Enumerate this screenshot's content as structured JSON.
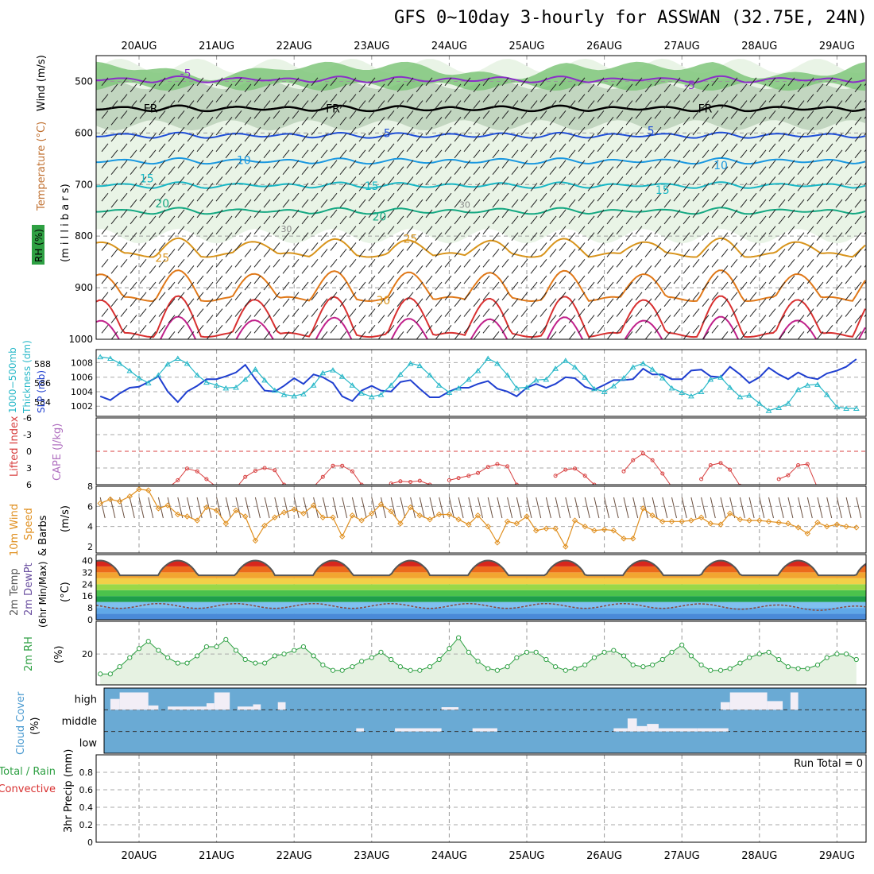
{
  "title": "GFS 0~10day 3-hourly for ASSWAN (32.75E, 24N)",
  "dates": [
    "20AUG",
    "21AUG",
    "22AUG",
    "23AUG",
    "24AUG",
    "25AUG",
    "26AUG",
    "27AUG",
    "28AUG",
    "29AUG"
  ],
  "run_total": "Run Total = 0",
  "colors": {
    "rh_green": "#2ea043",
    "dewpt": "#6a4fa0",
    "temp_red": "#d81818",
    "cloud": "#6aaad4",
    "thickness": "#1f3fd0",
    "slp": "#28b8c8",
    "wind10": "#e09020",
    "lifted": "#d84040"
  },
  "labels": {
    "p1": {
      "wind": "Wind (m/s)",
      "temperature": "Temperature (°C)",
      "rh": "RH (%)",
      "mb": "(m i l l i b a r s)"
    },
    "p2": {
      "thick1": "1000−500mb",
      "thick2": "Thickness (dm)",
      "slp": "SLP (mb)"
    },
    "p3": {
      "li": "Lifted Index",
      "cape": "CAPE (J/kg)"
    },
    "p4": {
      "wind10": "10m Wind",
      "speed": "Speed",
      "barbs": "& Barbs",
      "unit": "(m/s)"
    },
    "p5": {
      "temp": "2m Temp",
      "dewpt": "2m DewPt",
      "minmax": "(6hr Min/Max)",
      "unit": "(°C)"
    },
    "p6": {
      "rh": "2m RH",
      "unit": "(%)"
    },
    "p7": {
      "cloud": "Cloud Cover",
      "unit": "(%)",
      "high": "high",
      "middle": "middle",
      "low": "low"
    },
    "p8": {
      "total": "Total / Rain",
      "convective": "Convective",
      "precip": "3hr Precip (mm)"
    }
  },
  "chart_data": [
    {
      "type": "contour",
      "name": "upper-air cross-section",
      "ylabel": "millibars",
      "ylim": [
        1000,
        450
      ],
      "yticks": [
        "500",
        "600",
        "700",
        "800",
        "900",
        "1000"
      ],
      "temperature_isotherm_labels": [
        {
          "label": "-5",
          "p": 492,
          "t": 0.6
        },
        {
          "label": "-5",
          "p": 515,
          "t": 7.1
        },
        {
          "label": "FR",
          "p": 560,
          "t": 0.15
        },
        {
          "label": "FR",
          "p": 560,
          "t": 2.5
        },
        {
          "label": "FR",
          "p": 560,
          "t": 7.3
        },
        {
          "label": "5",
          "p": 608,
          "t": 3.2
        },
        {
          "label": "5",
          "p": 603,
          "t": 6.6
        },
        {
          "label": "10",
          "p": 660,
          "t": 1.35
        },
        {
          "label": "10",
          "p": 670,
          "t": 7.5
        },
        {
          "label": "15",
          "p": 696,
          "t": 0.1
        },
        {
          "label": "15",
          "p": 710,
          "t": 3.0
        },
        {
          "label": "15",
          "p": 718,
          "t": 6.75
        },
        {
          "label": "20",
          "p": 744,
          "t": 0.3
        },
        {
          "label": "20",
          "p": 770,
          "t": 3.1
        },
        {
          "label": "25",
          "p": 850,
          "t": 0.3
        },
        {
          "label": "25",
          "p": 813,
          "t": 3.5
        },
        {
          "label": "30",
          "p": 932,
          "t": 3.15
        }
      ],
      "rh_labels": [
        {
          "label": "30",
          "p": 792,
          "t": 1.9
        },
        {
          "label": "30",
          "p": 745,
          "t": 4.2
        }
      ]
    },
    {
      "type": "line",
      "name": "thickness and SLP",
      "x_days": [
        -0.5,
        -0.37,
        -0.25,
        -0.12,
        0,
        0.12,
        0.25,
        0.37,
        0.5,
        0.62,
        0.75,
        0.87,
        1,
        1.12,
        1.25,
        1.37,
        1.5,
        1.62,
        1.75,
        1.87,
        2,
        2.12,
        2.25,
        2.37,
        2.5,
        2.62,
        2.75,
        2.87,
        3,
        3.12,
        3.25,
        3.37,
        3.5,
        3.62,
        3.75,
        3.87,
        4,
        4.12,
        4.25,
        4.37,
        4.5,
        4.62,
        4.75,
        4.87,
        5,
        5.12,
        5.25,
        5.37,
        5.5,
        5.62,
        5.75,
        5.87,
        6,
        6.12,
        6.25,
        6.37,
        6.5,
        6.62,
        6.75,
        6.87,
        7,
        7.12,
        7.25,
        7.37,
        7.5,
        7.62,
        7.75,
        7.87,
        8,
        8.12,
        8.25,
        8.37,
        8.5,
        8.62,
        8.75,
        8.87,
        9,
        9.12,
        9.25
      ],
      "series": [
        {
          "name": "1000-500mb Thickness (dm)",
          "axis": "left",
          "ylim": [
            582.5,
            589.5
          ],
          "yticks": [
            584,
            586,
            588
          ],
          "values": [
            584.6,
            584.2,
            584.9,
            585.5,
            585.6,
            586.1,
            586.7,
            585.1,
            584.0,
            585.1,
            585.7,
            586.4,
            586.4,
            586.7,
            587.1,
            587.9,
            586.4,
            585.2,
            585.1,
            585.7,
            586.5,
            585.9,
            586.9,
            586.6,
            586.0,
            584.6,
            584.1,
            585.2,
            585.7,
            585.2,
            585.1,
            586.1,
            586.3,
            585.4,
            584.5,
            584.5,
            585.1,
            585.5,
            585.5,
            585.9,
            586.2,
            585.4,
            585.1,
            584.6,
            585.5,
            585.9,
            585.5,
            585.9,
            586.6,
            586.5,
            585.6,
            585.3,
            585.8,
            586.3,
            586.3,
            586.4,
            587.5,
            586.9,
            586.9,
            586.4,
            586.4,
            587.3,
            587.4,
            586.7,
            586.6,
            587.7,
            586.9,
            586.0,
            586.6,
            587.6,
            586.9,
            586.4,
            587.1,
            586.6,
            586.4,
            587.0,
            587.3,
            587.7,
            588.5
          ]
        },
        {
          "name": "SLP (mb)",
          "axis": "right",
          "ylim": [
            1000.6,
            1009.8
          ],
          "yticks": [
            1002,
            1004,
            1006,
            1008
          ],
          "values": [
            1008.8,
            1008.6,
            1007.9,
            1006.9,
            1005.9,
            1005.2,
            1006.3,
            1007.8,
            1008.6,
            1007.9,
            1006.3,
            1005.3,
            1004.9,
            1004.5,
            1004.6,
            1005.7,
            1007.1,
            1005.6,
            1004.2,
            1003.6,
            1003.4,
            1003.7,
            1004.9,
            1006.6,
            1007.0,
            1006.1,
            1004.9,
            1003.8,
            1003.3,
            1003.6,
            1004.9,
            1006.4,
            1007.9,
            1007.6,
            1006.3,
            1004.9,
            1003.9,
            1004.5,
            1005.7,
            1006.9,
            1008.6,
            1007.9,
            1006.3,
            1004.5,
            1004.6,
            1005.6,
            1005.7,
            1007.2,
            1008.3,
            1007.4,
            1006.0,
            1004.4,
            1004.0,
            1004.8,
            1005.9,
            1007.4,
            1007.9,
            1007.1,
            1005.9,
            1004.5,
            1003.9,
            1003.4,
            1004.0,
            1005.7,
            1006.0,
            1004.6,
            1003.3,
            1003.5,
            1002.4,
            1001.4,
            1001.8,
            1002.4,
            1004.3,
            1004.9,
            1005.0,
            1003.6,
            1001.9,
            1001.7,
            1001.7
          ]
        }
      ]
    },
    {
      "type": "line",
      "name": "Lifted Index / CAPE",
      "ylim": [
        6,
        -6
      ],
      "yticks": [
        "-6",
        "-3",
        "0",
        "3",
        "6"
      ],
      "zero_line": 0,
      "lifted_index": [
        {
          "x": 0.25,
          "y": 7.8
        },
        {
          "x": 0.37,
          "y": 6.6
        },
        {
          "x": 0.5,
          "y": 5.2
        },
        {
          "x": 0.62,
          "y": 3.1
        },
        {
          "x": 0.75,
          "y": 3.6
        },
        {
          "x": 0.87,
          "y": 5.0
        },
        {
          "x": 1.0,
          "y": 6.4
        },
        {
          "x": 1.25,
          "y": 6.6
        },
        {
          "x": 1.37,
          "y": 4.6
        },
        {
          "x": 1.5,
          "y": 3.5
        },
        {
          "x": 1.62,
          "y": 3.0
        },
        {
          "x": 1.75,
          "y": 3.4
        },
        {
          "x": 1.87,
          "y": 6.0
        },
        {
          "x": 2.25,
          "y": 6.4
        },
        {
          "x": 2.37,
          "y": 4.6
        },
        {
          "x": 2.5,
          "y": 2.6
        },
        {
          "x": 2.62,
          "y": 2.6
        },
        {
          "x": 2.75,
          "y": 3.6
        },
        {
          "x": 2.87,
          "y": 6.0
        },
        {
          "x": 3.25,
          "y": 5.8
        },
        {
          "x": 3.37,
          "y": 5.4
        },
        {
          "x": 3.5,
          "y": 5.5
        },
        {
          "x": 3.62,
          "y": 5.3
        },
        {
          "x": 3.75,
          "y": 6.0
        },
        {
          "x": 4.0,
          "y": 5.2
        },
        {
          "x": 4.12,
          "y": 4.8
        },
        {
          "x": 4.25,
          "y": 4.4
        },
        {
          "x": 4.37,
          "y": 3.9
        },
        {
          "x": 4.5,
          "y": 2.8
        },
        {
          "x": 4.62,
          "y": 2.3
        },
        {
          "x": 4.75,
          "y": 2.7
        },
        {
          "x": 4.87,
          "y": 6.0
        },
        {
          "x": 5.0,
          "y": 6.4
        },
        {
          "x": 5.37,
          "y": 4.4
        },
        {
          "x": 5.5,
          "y": 3.3
        },
        {
          "x": 5.62,
          "y": 3.1
        },
        {
          "x": 5.75,
          "y": 4.4
        },
        {
          "x": 5.87,
          "y": 6.0
        },
        {
          "x": 6.25,
          "y": 3.6
        },
        {
          "x": 6.37,
          "y": 1.6
        },
        {
          "x": 6.5,
          "y": 0.4
        },
        {
          "x": 6.62,
          "y": 1.6
        },
        {
          "x": 6.75,
          "y": 4.0
        },
        {
          "x": 6.87,
          "y": 6.4
        },
        {
          "x": 7.25,
          "y": 5.0
        },
        {
          "x": 7.37,
          "y": 2.5
        },
        {
          "x": 7.5,
          "y": 2.1
        },
        {
          "x": 7.62,
          "y": 3.3
        },
        {
          "x": 7.75,
          "y": 6.2
        },
        {
          "x": 8.25,
          "y": 5.0
        },
        {
          "x": 8.37,
          "y": 4.3
        },
        {
          "x": 8.5,
          "y": 2.5
        },
        {
          "x": 8.62,
          "y": 2.3
        },
        {
          "x": 8.75,
          "y": 6.6
        }
      ]
    },
    {
      "type": "line",
      "name": "10m Wind Speed",
      "ylim": [
        2,
        8
      ],
      "yticks": [
        "2",
        "4",
        "6",
        "8"
      ],
      "x_days": [
        -0.5,
        -0.37,
        -0.25,
        -0.12,
        0,
        0.12,
        0.25,
        0.37,
        0.5,
        0.62,
        0.75,
        0.87,
        1,
        1.12,
        1.25,
        1.37,
        1.5,
        1.62,
        1.75,
        1.87,
        2,
        2.12,
        2.25,
        2.37,
        2.5,
        2.62,
        2.75,
        2.87,
        3,
        3.12,
        3.25,
        3.37,
        3.5,
        3.62,
        3.75,
        3.87,
        4,
        4.12,
        4.25,
        4.37,
        4.5,
        4.62,
        4.75,
        4.87,
        5,
        5.12,
        5.25,
        5.37,
        5.5,
        5.62,
        5.75,
        5.87,
        6,
        6.12,
        6.25,
        6.37,
        6.5,
        6.62,
        6.75,
        6.87,
        7,
        7.12,
        7.25,
        7.37,
        7.5,
        7.62,
        7.75,
        7.87,
        8,
        8.12,
        8.25,
        8.37,
        8.5,
        8.62,
        8.75,
        8.87,
        9,
        9.12,
        9.25
      ],
      "values": [
        6.3,
        6.7,
        6.5,
        7.0,
        7.7,
        7.6,
        5.8,
        6.1,
        5.2,
        5.0,
        4.6,
        5.9,
        5.6,
        4.3,
        5.6,
        5.0,
        2.6,
        4.1,
        4.9,
        5.4,
        5.7,
        5.3,
        6.1,
        4.9,
        4.9,
        3.0,
        5.1,
        4.6,
        5.3,
        6.2,
        5.5,
        4.3,
        5.9,
        5.1,
        4.7,
        5.2,
        5.2,
        4.7,
        4.2,
        5.1,
        4.0,
        2.4,
        4.5,
        4.3,
        5.0,
        3.6,
        3.8,
        3.8,
        2.0,
        4.6,
        4.0,
        3.6,
        3.7,
        3.6,
        2.8,
        2.8,
        5.8,
        5.1,
        4.5,
        4.5,
        4.5,
        4.6,
        4.9,
        4.3,
        4.2,
        5.3,
        4.7,
        4.6,
        4.6,
        4.5,
        4.4,
        4.3,
        3.9,
        3.3,
        4.4,
        4.0,
        4.2,
        4.0,
        3.9
      ]
    },
    {
      "type": "area",
      "name": "2m Temperature / DewPt",
      "ylim": [
        0,
        44
      ],
      "yticks": [
        "0",
        "8",
        "16",
        "24",
        "32",
        "40"
      ],
      "temperature_daily": {
        "min": 30,
        "max": 40,
        "peak_offset_days": 0.5
      },
      "dewpoint": {
        "mean": 9.3,
        "range": [
          5.5,
          11.0
        ]
      },
      "colour_bands_c": [
        0,
        4,
        8,
        12,
        16,
        20,
        24,
        28,
        32,
        36,
        40,
        44
      ]
    },
    {
      "type": "line",
      "name": "2m RH",
      "ylim": [
        3,
        38
      ],
      "yticks": [
        "20"
      ],
      "x_days": [
        -0.5,
        -0.37,
        -0.25,
        -0.12,
        0,
        0.12,
        0.25,
        0.37,
        0.5,
        0.62,
        0.75,
        0.87,
        1,
        1.12,
        1.25,
        1.37,
        1.5,
        1.62,
        1.75,
        1.87,
        2,
        2.12,
        2.25,
        2.37,
        2.5,
        2.62,
        2.75,
        2.87,
        3,
        3.12,
        3.25,
        3.37,
        3.5,
        3.62,
        3.75,
        3.87,
        4,
        4.12,
        4.25,
        4.37,
        4.5,
        4.62,
        4.75,
        4.87,
        5,
        5.12,
        5.25,
        5.37,
        5.5,
        5.62,
        5.75,
        5.87,
        6,
        6.12,
        6.25,
        6.37,
        6.5,
        6.62,
        6.75,
        6.87,
        7,
        7.12,
        7.25,
        7.37,
        7.5,
        7.62,
        7.75,
        7.87,
        8,
        8.12,
        8.25,
        8.37,
        8.5,
        8.62,
        8.75,
        8.87,
        9,
        9.12,
        9.25
      ],
      "values": [
        9,
        9,
        13,
        18,
        23,
        27,
        22,
        18,
        15,
        15,
        19,
        24,
        24,
        28,
        22,
        17,
        15,
        15,
        19,
        20,
        22,
        24,
        19,
        14,
        11,
        11,
        13,
        16,
        18,
        21,
        17,
        13,
        11,
        11,
        13,
        17,
        23,
        29,
        21,
        16,
        12,
        11,
        13,
        18,
        21,
        21,
        17,
        13,
        11,
        12,
        14,
        18,
        21,
        22,
        19,
        14,
        13,
        14,
        17,
        21,
        25,
        19,
        14,
        11,
        11,
        12,
        15,
        18,
        20,
        21,
        17,
        13,
        12,
        12,
        14,
        18,
        20,
        20,
        17
      ]
    },
    {
      "type": "bar",
      "name": "Cloud Cover",
      "levels": [
        "high",
        "middle",
        "low"
      ],
      "high_cloud": [
        {
          "from": -0.37,
          "to": -0.25,
          "pct": 50
        },
        {
          "from": -0.25,
          "to": 0.12,
          "pct": 80
        },
        {
          "from": 0.12,
          "to": 0.25,
          "pct": 20
        },
        {
          "from": 0.37,
          "to": 0.87,
          "pct": 15
        },
        {
          "from": 0.87,
          "to": 0.97,
          "pct": 30
        },
        {
          "from": 0.97,
          "to": 1.17,
          "pct": 80
        },
        {
          "from": 1.27,
          "to": 1.47,
          "pct": 15
        },
        {
          "from": 1.47,
          "to": 1.57,
          "pct": 25
        },
        {
          "from": 1.79,
          "to": 1.89,
          "pct": 35
        },
        {
          "from": 3.9,
          "to": 4.12,
          "pct": 12
        },
        {
          "from": 7.5,
          "to": 7.62,
          "pct": 35
        },
        {
          "from": 7.62,
          "to": 8.1,
          "pct": 80
        },
        {
          "from": 8.1,
          "to": 8.3,
          "pct": 40
        },
        {
          "from": 8.4,
          "to": 8.5,
          "pct": 80
        }
      ],
      "mid_cloud": [
        {
          "from": 2.8,
          "to": 2.9,
          "pct": 15
        },
        {
          "from": 3.3,
          "to": 3.9,
          "pct": 15
        },
        {
          "from": 4.3,
          "to": 4.62,
          "pct": 15
        },
        {
          "from": 6.12,
          "to": 6.3,
          "pct": 15
        },
        {
          "from": 6.3,
          "to": 6.42,
          "pct": 60
        },
        {
          "from": 6.42,
          "to": 6.55,
          "pct": 25
        },
        {
          "from": 6.55,
          "to": 6.7,
          "pct": 35
        },
        {
          "from": 6.7,
          "to": 7.2,
          "pct": 15
        },
        {
          "from": 7.2,
          "to": 7.6,
          "pct": 15
        }
      ]
    },
    {
      "type": "bar",
      "name": "3hr Precip",
      "ylim": [
        0,
        1
      ],
      "yticks": [
        "0",
        "0.2",
        "0.4",
        "0.6",
        "0.8"
      ],
      "values": []
    }
  ]
}
